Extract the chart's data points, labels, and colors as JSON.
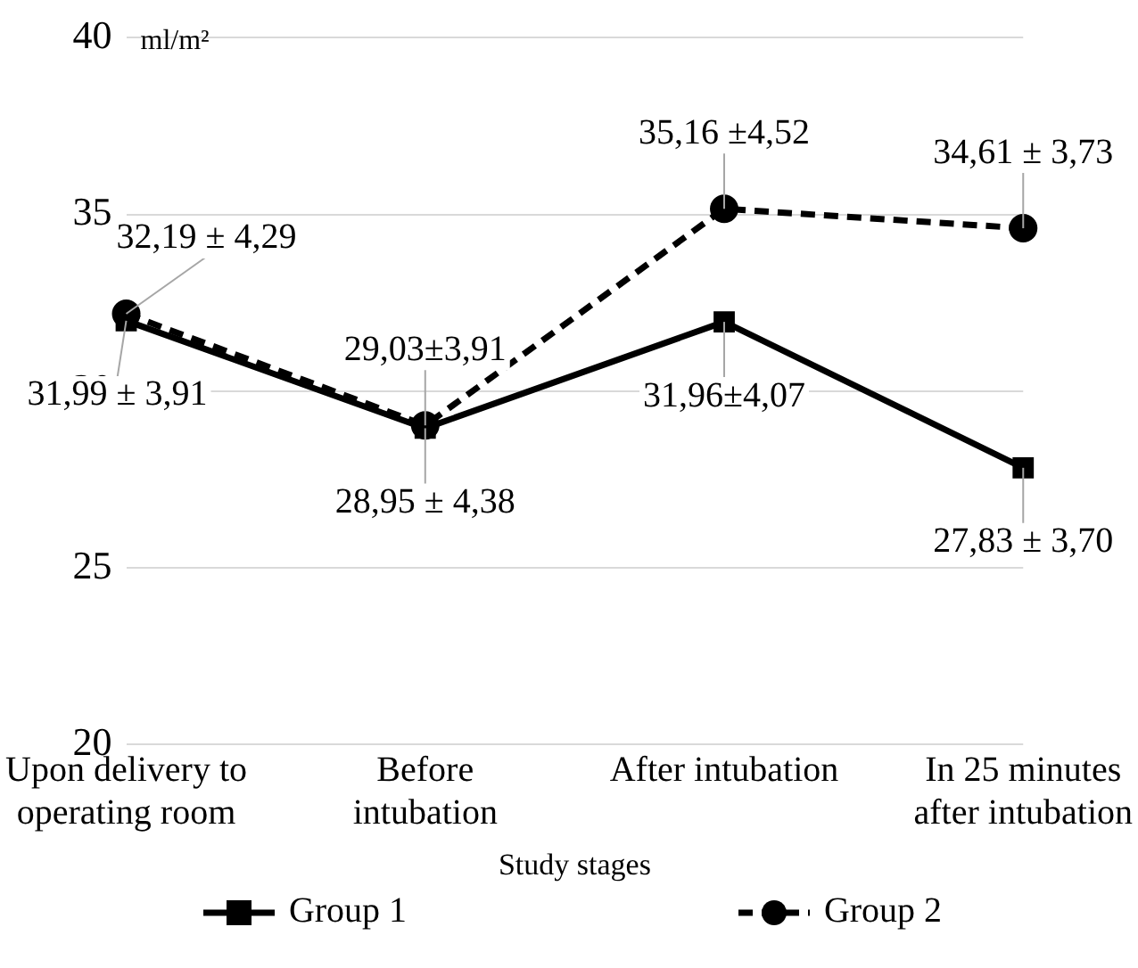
{
  "chart_data": {
    "type": "line",
    "ylabel": "ml/m²",
    "xlabel": "Study stages",
    "categories": [
      "Upon delivery to operating room",
      "Before intubation",
      "After intubation",
      "In 25 minutes after intubation"
    ],
    "series": [
      {
        "name": "Group 1",
        "color": "#000000",
        "values": [
          31.99,
          28.95,
          31.96,
          27.83
        ],
        "marker": "square",
        "line_style": "solid",
        "value_labels": [
          "31,99 ± 3,91",
          "28,95 ± 4,38",
          "31,96±4,07",
          "27,83 ± 3,70"
        ]
      },
      {
        "name": "Group 2",
        "color": "#000000",
        "values": [
          32.19,
          29.03,
          35.16,
          34.61
        ],
        "marker": "circle",
        "line_style": "dashed",
        "value_labels": [
          "32,19 ± 4,29",
          "29,03±3,91",
          "35,16 ±4,52",
          "34,61 ± 3,73"
        ]
      }
    ],
    "ylim": [
      20,
      40
    ],
    "yticks": [
      20,
      25,
      30,
      35,
      40
    ],
    "grid": "y",
    "legend": "bottom"
  }
}
